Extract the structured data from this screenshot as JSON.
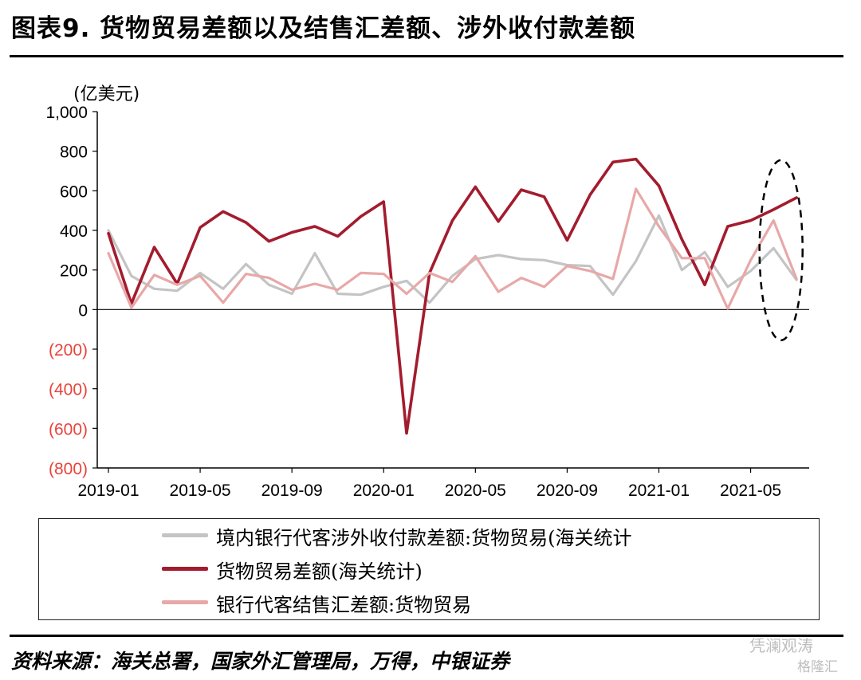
{
  "title": "图表9. 货物贸易差额以及结售汇差额、涉外收付款差额",
  "source": "资料来源：海关总署，国家外汇管理局，万得，中银证券",
  "watermark": {
    "line1": "凭澜观涛",
    "line2": "格隆汇"
  },
  "chart_data": {
    "type": "line",
    "unit_label": "(亿美元)",
    "ylim": [
      -800,
      1000
    ],
    "yticks": [
      {
        "value": 1000,
        "label": "1,000",
        "color": "#000000"
      },
      {
        "value": 800,
        "label": "800",
        "color": "#000000"
      },
      {
        "value": 600,
        "label": "600",
        "color": "#000000"
      },
      {
        "value": 400,
        "label": "400",
        "color": "#000000"
      },
      {
        "value": 200,
        "label": "200",
        "color": "#000000"
      },
      {
        "value": 0,
        "label": "0",
        "color": "#000000"
      },
      {
        "value": -200,
        "label": "(200)",
        "color": "#e8443a"
      },
      {
        "value": -400,
        "label": "(400)",
        "color": "#e8443a"
      },
      {
        "value": -600,
        "label": "(600)",
        "color": "#e8443a"
      },
      {
        "value": -800,
        "label": "(800)",
        "color": "#e8443a"
      }
    ],
    "x": [
      "2019-01",
      "2019-02",
      "2019-03",
      "2019-04",
      "2019-05",
      "2019-06",
      "2019-07",
      "2019-08",
      "2019-09",
      "2019-10",
      "2019-11",
      "2019-12",
      "2020-01",
      "2020-02",
      "2020-03",
      "2020-04",
      "2020-05",
      "2020-06",
      "2020-07",
      "2020-08",
      "2020-09",
      "2020-10",
      "2020-11",
      "2020-12",
      "2021-01",
      "2021-02",
      "2021-03",
      "2021-04",
      "2021-05",
      "2021-06",
      "2021-07"
    ],
    "xtick_labels": [
      "2019-01",
      "2019-05",
      "2019-09",
      "2020-01",
      "2020-05",
      "2020-09",
      "2021-01",
      "2021-05"
    ],
    "grid": false,
    "legend_position": "bottom",
    "series": [
      {
        "name": "境内银行代客涉外收付款差额:货物贸易(海关统计",
        "color": "#c4c4c4",
        "values": [
          400,
          170,
          105,
          95,
          185,
          105,
          230,
          125,
          80,
          285,
          80,
          75,
          115,
          145,
          35,
          170,
          255,
          275,
          255,
          250,
          225,
          220,
          75,
          245,
          475,
          200,
          290,
          115,
          195,
          310,
          150
        ]
      },
      {
        "name": "货物贸易差额(海关统计)",
        "color": "#a31c2e",
        "values": [
          385,
          30,
          315,
          130,
          415,
          495,
          440,
          345,
          390,
          420,
          370,
          470,
          545,
          -625,
          185,
          450,
          620,
          445,
          605,
          570,
          350,
          580,
          745,
          760,
          625,
          355,
          125,
          420,
          450,
          505,
          565
        ]
      },
      {
        "name": "银行代客结售汇差额:货物贸易",
        "color": "#e8a8a8",
        "values": [
          285,
          10,
          175,
          125,
          170,
          35,
          180,
          160,
          100,
          130,
          100,
          185,
          180,
          80,
          185,
          140,
          270,
          90,
          160,
          115,
          220,
          195,
          155,
          610,
          420,
          260,
          260,
          5,
          250,
          450,
          155
        ]
      }
    ],
    "annotation": {
      "type": "dashed-ellipse",
      "around": [
        "2021-06",
        "2021-07"
      ]
    }
  }
}
